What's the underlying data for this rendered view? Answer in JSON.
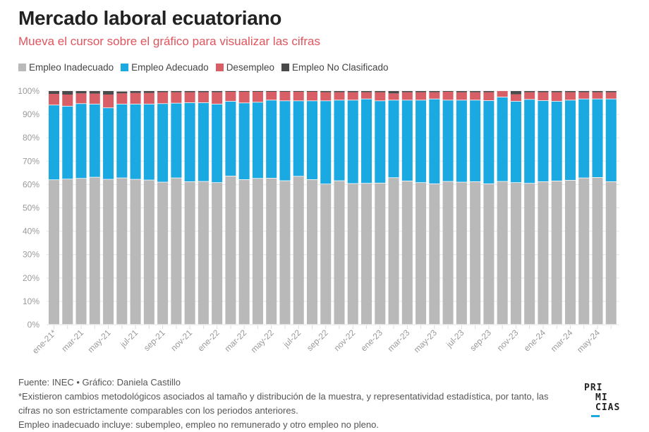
{
  "header": {
    "title": "Mercado laboral ecuatoriano",
    "subtitle": "Mueva el cursor sobre el gráfico para visualizar las cifras"
  },
  "legend": [
    {
      "label": "Empleo Inadecuado",
      "color": "#b9b9b9"
    },
    {
      "label": "Empleo Adecuado",
      "color": "#1ba9e1"
    },
    {
      "label": "Desempleo",
      "color": "#d95f67"
    },
    {
      "label": "Empleo No Clasificado",
      "color": "#4a4a4a"
    }
  ],
  "footer": {
    "source": "Fuente: INEC • Gráfico: Daniela Castillo",
    "note1": "*Existieron cambios metodológicos asociados al tamaño y distribución de la muestra, y representatividad estadística, por tanto, las cifras no son estrictamente comparables con los periodos anteriores.",
    "note2": "Empleo inadecuado incluye: subempleo, empleo no remunerado y otro empleo no pleno."
  },
  "logo": {
    "line1": "PRI",
    "line2": "MI",
    "line3": "CIAS",
    "accent": "#1ea7e0"
  },
  "chart_data": {
    "type": "bar",
    "stacked": true,
    "title": "Mercado laboral ecuatoriano",
    "xlabel": "",
    "ylabel": "",
    "ylim": [
      0,
      100
    ],
    "yticks": [
      "0%",
      "10%",
      "20%",
      "30%",
      "40%",
      "50%",
      "60%",
      "70%",
      "80%",
      "90%",
      "100%"
    ],
    "grid": true,
    "legend_position": "top-left",
    "categories": [
      "ene-21*",
      "feb-21",
      "mar-21",
      "abr-21",
      "may-21",
      "jun-21",
      "jul-21",
      "ago-21",
      "sep-21",
      "oct-21",
      "nov-21",
      "dic-21",
      "ene-22",
      "feb-22",
      "mar-22",
      "abr-22",
      "may-22",
      "jun-22",
      "jul-22",
      "ago-22",
      "sep-22",
      "oct-22",
      "nov-22",
      "dic-22",
      "ene-23",
      "feb-23",
      "mar-23",
      "abr-23",
      "may-23",
      "jun-23",
      "jul-23",
      "ago-23",
      "sep-23",
      "oct-23",
      "nov-23",
      "dic-23",
      "ene-24",
      "feb-24",
      "mar-24",
      "abr-24",
      "may-24",
      "jun-24"
    ],
    "tick_labels": [
      "ene-21*",
      "mar-21",
      "may-21",
      "jul-21",
      "sep-21",
      "nov-21",
      "ene-22",
      "mar-22",
      "may-22",
      "jul-22",
      "sep-22",
      "nov-22",
      "ene-23",
      "mar-23",
      "may-23",
      "jul-23",
      "sep-23",
      "nov-23",
      "ene-24",
      "mar-24",
      "may-24"
    ],
    "series": [
      {
        "name": "Empleo Inadecuado",
        "color": "#b9b9b9",
        "values": [
          61.9,
          62.2,
          62.5,
          63.0,
          62.1,
          62.7,
          62.1,
          61.8,
          60.9,
          62.7,
          61.1,
          61.2,
          60.7,
          63.5,
          62.0,
          62.5,
          62.6,
          61.5,
          63.4,
          62.0,
          60.1,
          61.5,
          60.3,
          60.4,
          60.5,
          62.8,
          61.4,
          60.7,
          60.2,
          61.2,
          60.9,
          61.1,
          60.2,
          61.2,
          60.7,
          60.4,
          61.1,
          61.4,
          61.7,
          62.7,
          62.9,
          61.1
        ]
      },
      {
        "name": "Empleo Adecuado",
        "color": "#1ba9e1",
        "values": [
          32.0,
          31.2,
          32.0,
          31.3,
          30.6,
          31.6,
          32.2,
          32.5,
          33.6,
          32.0,
          33.8,
          33.7,
          33.6,
          32.0,
          32.8,
          32.6,
          33.4,
          34.2,
          32.3,
          33.7,
          35.6,
          34.5,
          35.7,
          36.1,
          35.2,
          33.2,
          34.6,
          35.3,
          36.3,
          34.8,
          35.1,
          34.9,
          35.6,
          36.1,
          34.8,
          35.9,
          34.7,
          34.1,
          34.3,
          33.8,
          33.6,
          35.4
        ]
      },
      {
        "name": "Desempleo",
        "color": "#d95f67",
        "values": [
          4.9,
          5.1,
          4.5,
          4.6,
          5.8,
          4.7,
          4.9,
          4.9,
          5.0,
          4.8,
          4.6,
          4.6,
          5.2,
          4.2,
          4.9,
          4.6,
          3.7,
          4.0,
          4.0,
          4.0,
          3.8,
          3.5,
          3.5,
          3.0,
          3.8,
          3.0,
          3.5,
          3.5,
          3.0,
          3.7,
          3.5,
          3.5,
          3.7,
          2.7,
          3.1,
          3.2,
          3.7,
          4.0,
          3.5,
          3.0,
          3.0,
          3.0
        ]
      },
      {
        "name": "Empleo No Clasificado",
        "color": "#4a4a4a",
        "values": [
          1.2,
          1.5,
          1.0,
          1.1,
          1.5,
          0.8,
          0.8,
          0.8,
          0.5,
          0.5,
          0.5,
          0.5,
          0.5,
          0.3,
          0.3,
          0.3,
          0.3,
          0.3,
          0.3,
          0.3,
          0.5,
          0.5,
          0.5,
          0.5,
          0.5,
          1.0,
          0.5,
          0.5,
          0.5,
          0.3,
          0.5,
          0.5,
          0.5,
          0.0,
          1.4,
          0.5,
          0.5,
          0.5,
          0.5,
          0.5,
          0.5,
          0.5
        ]
      }
    ]
  }
}
